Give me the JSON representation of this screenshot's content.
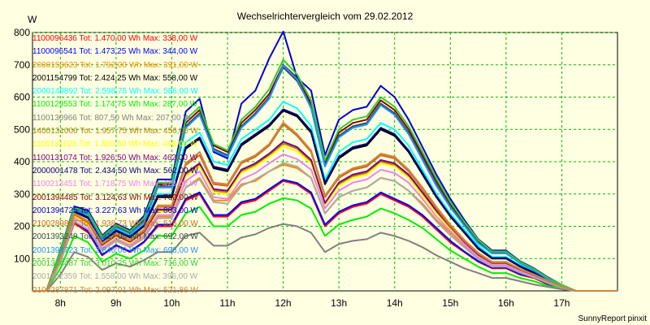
{
  "chart_data": {
    "type": "line",
    "title": "Wechselrichtervergleich vom 29.02.2012",
    "ylabel": "W",
    "ylim": [
      0,
      800
    ],
    "yticks": [
      100,
      200,
      300,
      400,
      500,
      600,
      700,
      800
    ],
    "xlim": [
      7.5,
      18
    ],
    "xticks": [
      8,
      9,
      10,
      11,
      12,
      13,
      14,
      15,
      16,
      17
    ],
    "xtick_labels": [
      "8h",
      "9h",
      "10h",
      "11h",
      "12h",
      "13h",
      "14h",
      "15h",
      "16h",
      "17h"
    ],
    "grid": true,
    "x": [
      7.5,
      7.75,
      8.0,
      8.25,
      8.5,
      8.75,
      9.0,
      9.25,
      9.5,
      9.75,
      10.0,
      10.25,
      10.5,
      10.75,
      11.0,
      11.25,
      11.5,
      11.75,
      12.0,
      12.25,
      12.5,
      12.75,
      13.0,
      13.25,
      13.5,
      13.75,
      14.0,
      14.25,
      14.5,
      14.75,
      15.0,
      15.25,
      15.5,
      15.75,
      16.0,
      16.25,
      16.5,
      16.75,
      17.0,
      17.25,
      17.5,
      17.75,
      18.0
    ],
    "series": [
      {
        "name": "1100096436 Tot: 1.470,00 Wh Max: 338,00 W",
        "color": "#ff0000",
        "values": [
          0,
          0,
          90,
          210,
          180,
          110,
          140,
          120,
          150,
          200,
          200,
          280,
          300,
          230,
          230,
          270,
          280,
          310,
          340,
          330,
          300,
          200,
          240,
          260,
          270,
          300,
          280,
          260,
          230,
          190,
          150,
          120,
          90,
          70,
          70,
          50,
          40,
          20,
          10,
          0,
          0,
          0,
          0
        ]
      },
      {
        "name": "1100096541 Tot: 1.473,25 Wh Max: 344,00 W",
        "color": "#0000ff",
        "values": [
          0,
          0,
          90,
          215,
          185,
          112,
          142,
          122,
          152,
          205,
          205,
          285,
          305,
          235,
          235,
          275,
          285,
          315,
          344,
          334,
          305,
          205,
          245,
          265,
          275,
          305,
          285,
          265,
          235,
          195,
          155,
          122,
          92,
          72,
          72,
          52,
          42,
          22,
          10,
          0,
          0,
          0,
          0
        ]
      },
      {
        "name": "2000150623 Tot: 1.792,00 Wh Max: 391,00 W",
        "color": "#ff8c00",
        "values": [
          0,
          0,
          100,
          230,
          200,
          130,
          160,
          140,
          170,
          230,
          230,
          320,
          350,
          280,
          280,
          330,
          340,
          370,
          391,
          380,
          350,
          240,
          290,
          310,
          320,
          350,
          340,
          310,
          270,
          220,
          180,
          140,
          100,
          80,
          80,
          60,
          45,
          25,
          12,
          0,
          0,
          0,
          0
        ]
      },
      {
        "name": "2001154799 Tot: 2.424,25 Wh Max: 558,00 W",
        "color": "#000000",
        "values": [
          0,
          0,
          110,
          245,
          225,
          150,
          185,
          165,
          200,
          290,
          290,
          440,
          470,
          380,
          370,
          450,
          480,
          510,
          558,
          540,
          490,
          330,
          410,
          440,
          450,
          500,
          480,
          430,
          360,
          290,
          230,
          180,
          130,
          100,
          100,
          75,
          55,
          30,
          15,
          0,
          0,
          0,
          0
        ]
      },
      {
        "name": "2000149892 Tot: 2.598,75 Wh Max: 586,00 W",
        "color": "#00ffff",
        "values": [
          0,
          0,
          115,
          250,
          230,
          155,
          190,
          170,
          205,
          300,
          300,
          460,
          490,
          400,
          390,
          470,
          500,
          530,
          586,
          565,
          510,
          345,
          430,
          460,
          470,
          520,
          500,
          450,
          375,
          300,
          240,
          190,
          140,
          105,
          105,
          80,
          60,
          35,
          15,
          0,
          0,
          0,
          0
        ]
      },
      {
        "name": "1100129553 Tot: 1.174,75 Wh Max: 287,00 W",
        "color": "#00ee00",
        "values": [
          0,
          0,
          70,
          170,
          150,
          90,
          115,
          100,
          125,
          170,
          170,
          240,
          260,
          200,
          200,
          235,
          245,
          270,
          287,
          280,
          255,
          170,
          205,
          220,
          230,
          255,
          240,
          220,
          195,
          160,
          125,
          100,
          75,
          55,
          55,
          40,
          30,
          15,
          8,
          0,
          0,
          0,
          0
        ]
      },
      {
        "name": "1100130966 Tot: 807,50 Wh Max: 207,00 W",
        "color": "#808080",
        "values": [
          0,
          0,
          50,
          120,
          105,
          65,
          85,
          75,
          95,
          120,
          120,
          170,
          180,
          140,
          140,
          165,
          175,
          195,
          207,
          200,
          180,
          120,
          145,
          155,
          160,
          180,
          170,
          155,
          135,
          110,
          90,
          70,
          55,
          40,
          40,
          30,
          20,
          12,
          5,
          0,
          0,
          0,
          0
        ]
      },
      {
        "name": "1400131006 Tot: 1.957,75 Wh Max: 456,00 W",
        "color": "#b8860b",
        "values": [
          0,
          0,
          100,
          235,
          210,
          140,
          170,
          150,
          180,
          250,
          250,
          360,
          390,
          310,
          305,
          370,
          390,
          420,
          456,
          440,
          400,
          270,
          330,
          355,
          365,
          400,
          390,
          355,
          300,
          245,
          195,
          150,
          110,
          85,
          85,
          65,
          48,
          28,
          12,
          0,
          0,
          0,
          0
        ]
      },
      {
        "name": "1100131028 Tot: 1.850,50 Wh Max: 448,00 W",
        "color": "#ffff00",
        "values": [
          0,
          0,
          98,
          232,
          205,
          138,
          168,
          148,
          178,
          245,
          245,
          355,
          385,
          305,
          300,
          365,
          385,
          415,
          448,
          432,
          395,
          265,
          325,
          350,
          360,
          395,
          385,
          350,
          295,
          240,
          190,
          148,
          108,
          82,
          82,
          62,
          46,
          26,
          12,
          0,
          0,
          0,
          0
        ]
      },
      {
        "name": "1100131074 Tot: 1.926,50 Wh Max: 462,00 W",
        "color": "#800080",
        "values": [
          0,
          0,
          102,
          238,
          212,
          142,
          172,
          152,
          182,
          252,
          252,
          365,
          395,
          315,
          310,
          375,
          395,
          425,
          462,
          445,
          405,
          272,
          335,
          360,
          370,
          405,
          395,
          360,
          305,
          248,
          198,
          152,
          112,
          86,
          86,
          66,
          49,
          29,
          13,
          0,
          0,
          0,
          0
        ]
      },
      {
        "name": "2000001478 Tot: 2.434,50 Wh Max: 562,00 W",
        "color": "#000080",
        "values": [
          0,
          0,
          112,
          248,
          228,
          152,
          188,
          168,
          202,
          295,
          295,
          445,
          475,
          385,
          375,
          455,
          485,
          515,
          562,
          545,
          495,
          335,
          415,
          445,
          455,
          505,
          485,
          435,
          365,
          293,
          233,
          183,
          133,
          102,
          102,
          77,
          57,
          32,
          15,
          0,
          0,
          0,
          0
        ]
      },
      {
        "name": "1100213451 Tot: 1.718,75 Wh Max: 423,00 W",
        "color": "#ee82ee",
        "values": [
          0,
          0,
          95,
          225,
          198,
          132,
          162,
          142,
          172,
          235,
          235,
          340,
          370,
          290,
          285,
          345,
          365,
          395,
          423,
          408,
          375,
          255,
          310,
          335,
          345,
          375,
          365,
          335,
          285,
          230,
          185,
          145,
          105,
          80,
          80,
          60,
          44,
          25,
          11,
          0,
          0,
          0,
          0
        ]
      },
      {
        "name": "2001394485 Tot: 3.124,63 Wh Max: 700,00 W",
        "color": "#8b0000",
        "values": [
          0,
          0,
          120,
          255,
          240,
          165,
          200,
          180,
          220,
          330,
          330,
          520,
          560,
          450,
          430,
          520,
          560,
          610,
          700,
          660,
          580,
          400,
          490,
          520,
          530,
          590,
          560,
          500,
          420,
          340,
          270,
          210,
          155,
          120,
          120,
          90,
          68,
          40,
          18,
          0,
          0,
          0,
          0
        ]
      },
      {
        "name": "2001394725 Tot: 3.227,63 Wh Max: 803,00 W",
        "color": "#0000cd",
        "values": [
          0,
          0,
          125,
          262,
          248,
          172,
          208,
          188,
          232,
          345,
          345,
          555,
          595,
          430,
          410,
          580,
          620,
          720,
          803,
          660,
          620,
          420,
          530,
          560,
          570,
          635,
          600,
          530,
          445,
          360,
          285,
          220,
          160,
          125,
          125,
          92,
          70,
          42,
          18,
          0,
          0,
          0,
          0
        ]
      },
      {
        "name": "2100289887 Tot: 1.938,73 Wh Max: 516,00 W",
        "color": "#d2691e",
        "values": [
          0,
          0,
          100,
          236,
          212,
          145,
          175,
          155,
          185,
          260,
          260,
          390,
          420,
          330,
          325,
          395,
          415,
          450,
          516,
          480,
          430,
          290,
          350,
          375,
          385,
          420,
          410,
          370,
          315,
          255,
          200,
          155,
          115,
          88,
          88,
          67,
          50,
          30,
          13,
          0,
          0,
          0,
          0
        ]
      },
      {
        "name": "2001393249 Tot: 2.917,00 Wh Max: 692,00 W",
        "color": "#2f4f4f",
        "values": [
          0,
          0,
          118,
          252,
          238,
          162,
          198,
          178,
          215,
          325,
          325,
          510,
          550,
          440,
          420,
          510,
          550,
          600,
          692,
          650,
          570,
          390,
          480,
          510,
          520,
          580,
          550,
          490,
          410,
          330,
          262,
          205,
          150,
          118,
          118,
          88,
          66,
          38,
          17,
          0,
          0,
          0,
          0
        ]
      },
      {
        "name": "2001394723 Tot: 2.846,00 Wh Max: 698,00 W",
        "color": "#1e90ff",
        "values": [
          0,
          0,
          116,
          250,
          236,
          160,
          196,
          176,
          212,
          320,
          320,
          505,
          545,
          435,
          415,
          505,
          545,
          595,
          698,
          655,
          565,
          385,
          475,
          505,
          515,
          575,
          545,
          485,
          405,
          325,
          258,
          202,
          148,
          116,
          116,
          86,
          64,
          36,
          16,
          0,
          0,
          0,
          0
        ]
      },
      {
        "name": "2001394487 Tot: 3.010,25 Wh Max: 716,00 W",
        "color": "#32cd32",
        "values": [
          0,
          0,
          122,
          258,
          242,
          168,
          204,
          184,
          225,
          335,
          335,
          530,
          570,
          455,
          435,
          530,
          570,
          625,
          716,
          670,
          590,
          405,
          500,
          530,
          540,
          600,
          570,
          510,
          430,
          348,
          275,
          214,
          158,
          122,
          122,
          90,
          68,
          40,
          18,
          0,
          0,
          0,
          0
        ]
      },
      {
        "name": "2001102359 Tot: 1.558,00 Wh Max: 396,00 W",
        "color": "#a9a9a9",
        "values": [
          0,
          0,
          88,
          215,
          190,
          125,
          155,
          135,
          163,
          225,
          225,
          320,
          345,
          275,
          270,
          325,
          345,
          370,
          396,
          385,
          350,
          240,
          290,
          310,
          320,
          350,
          340,
          310,
          265,
          215,
          172,
          135,
          98,
          75,
          75,
          56,
          42,
          24,
          10,
          0,
          0,
          0,
          0
        ]
      },
      {
        "name": "2100287871 Tot: 2.097,01 Wh Max: 521,86 W",
        "color": "#cd853f",
        "values": [
          0,
          0,
          104,
          240,
          216,
          148,
          178,
          158,
          190,
          265,
          265,
          395,
          430,
          335,
          330,
          400,
          420,
          455,
          521,
          485,
          435,
          295,
          355,
          380,
          390,
          425,
          415,
          375,
          320,
          260,
          205,
          158,
          118,
          90,
          90,
          68,
          51,
          31,
          13,
          0,
          0,
          0,
          0
        ]
      }
    ]
  },
  "footer": {
    "credit": "SunnyReport pinxit"
  }
}
